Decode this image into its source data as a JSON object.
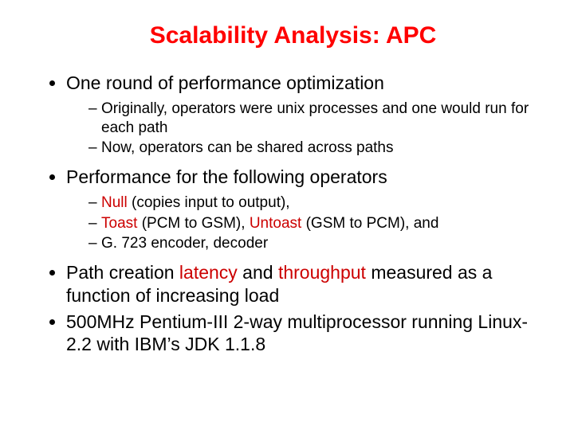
{
  "colors": {
    "title": "#ff0000",
    "body": "#000000",
    "accent": "#cc0000",
    "background": "#ffffff"
  },
  "typography": {
    "font_family": "Comic Sans MS",
    "title_fontsize_pt": 30,
    "title_weight": "bold",
    "level1_fontsize_pt": 23,
    "level2_fontsize_pt": 19
  },
  "title": "Scalability Analysis: APC",
  "bullets": [
    {
      "text": "One round of performance optimization",
      "sub": [
        "Originally, operators were unix processes and one would run for each path",
        "Now, operators can be shared across paths"
      ]
    },
    {
      "text": "Performance for the following operators",
      "sub_rich": [
        [
          {
            "t": "Null",
            "c": "accent"
          },
          {
            "t": " (copies input to output),",
            "c": "body"
          }
        ],
        [
          {
            "t": "Toast",
            "c": "accent"
          },
          {
            "t": " (PCM to GSM), ",
            "c": "body"
          },
          {
            "t": "Untoast",
            "c": "accent"
          },
          {
            "t": " (GSM to PCM), and",
            "c": "body"
          }
        ],
        [
          {
            "t": "G. 723 encoder, decoder",
            "c": "body"
          }
        ]
      ]
    },
    {
      "rich": [
        {
          "t": "Path creation ",
          "c": "body"
        },
        {
          "t": "latency",
          "c": "accent"
        },
        {
          "t": " and ",
          "c": "body"
        },
        {
          "t": "throughput",
          "c": "accent"
        },
        {
          "t": " measured as a function of increasing load",
          "c": "body"
        }
      ]
    },
    {
      "text": "500MHz Pentium-III 2-way multiprocessor running Linux-2.2 with IBM’s JDK 1.1.8"
    }
  ]
}
